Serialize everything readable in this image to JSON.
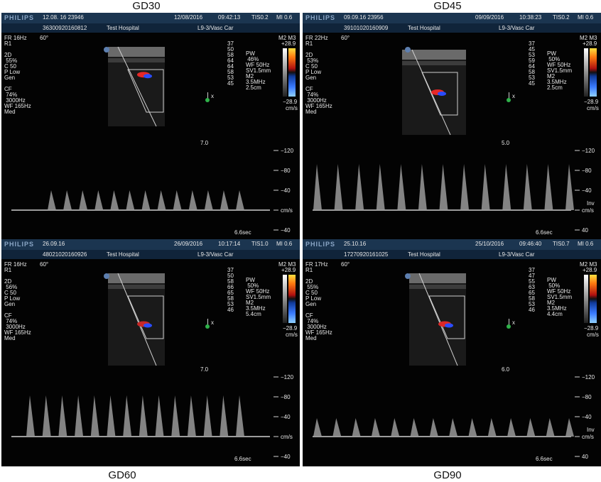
{
  "panels": [
    {
      "label": "GD30",
      "brand": "PHILIPS",
      "date_code": "12.08. 16 23946",
      "date": "12/08/2016",
      "time": "09:42:13",
      "tis": "TIS0.2",
      "mi": "MI 0.6",
      "id": "36300920160812",
      "hospital": "Test Hospital",
      "probe": "L9-3/Vasc Car",
      "fr": "FR 16Hz",
      "angle": "60°",
      "left_params": [
        "R1",
        "",
        "2D",
        " 55%",
        "C 50",
        "P Low",
        "Gen",
        "",
        "CF",
        " 74%",
        " 3000Hz",
        "WF 165Hz",
        "Med"
      ],
      "depth_nums": [
        "37",
        "50",
        "58",
        "64",
        "64",
        "58",
        "53",
        "45"
      ],
      "pw_params": [
        "PW",
        " 46%",
        "WF 50Hz",
        "SV1.5mm",
        "M2",
        "3.5MHz",
        "2.5cm"
      ],
      "scale_top": "+28.9",
      "scale_bottom": "−28.9",
      "scale_unit": "cm/s",
      "modes": "M2 M3",
      "depth": "7.0",
      "gate_x": "x",
      "doppler_ticks": [
        "−120",
        "−80",
        "−40",
        "cm/s",
        "−40"
      ],
      "inv": "",
      "sweep": "6.6sec"
    },
    {
      "label": "GD45",
      "brand": "PHILIPS",
      "date_code": "09.09.16 23956",
      "date": "09/09/2016",
      "time": "10:38:23",
      "tis": "TIS0.2",
      "mi": "MI 0.6",
      "id": "39101020160909",
      "hospital": "Test Hospital",
      "probe": "L9-3/Vasc Car",
      "fr": "FR 22Hz",
      "angle": "60°",
      "left_params": [
        "R1",
        "",
        "2D",
        " 53%",
        "C 50",
        "P Low",
        "Gen",
        "",
        "CF",
        " 74%",
        " 3000Hz",
        "WF 165Hz",
        "Med"
      ],
      "depth_nums": [
        "37",
        "45",
        "53",
        "59",
        "64",
        "58",
        "53",
        "45"
      ],
      "pw_params": [
        "PW",
        " 50%",
        "WF 50Hz",
        "SV1.5mm",
        "M2",
        "3.5MHz",
        "2.5cm"
      ],
      "scale_top": "+28.9",
      "scale_bottom": "−28.9",
      "scale_unit": "cm/s",
      "modes": "M2 M3",
      "depth": "5.0",
      "gate_x": "x",
      "doppler_ticks": [
        "−120",
        "−80",
        "−40",
        "cm/s",
        "40"
      ],
      "inv": "Inv",
      "sweep": "6.6sec"
    },
    {
      "label": "GD60",
      "brand": "PHILIPS",
      "date_code": "26.09.16",
      "date": "26/09/2016",
      "time": "10:17:14",
      "tis": "TIS1.0",
      "mi": "MI 0.6",
      "id": "48021020160926",
      "hospital": "Test Hospital",
      "probe": "L9-3/Vasc Car",
      "fr": "FR 16Hz",
      "angle": "60°",
      "left_params": [
        "R1",
        "",
        "2D",
        " 56%",
        "C 50",
        "P Low",
        "Gen",
        "",
        "CF",
        " 74%",
        " 3000Hz",
        "WF 165Hz",
        "Med"
      ],
      "depth_nums": [
        "37",
        "50",
        "58",
        "66",
        "65",
        "58",
        "53",
        "46"
      ],
      "pw_params": [
        "PW",
        " 50%",
        "WF 50Hz",
        "SV1.5mm",
        "M2",
        "3.5MHz",
        "5.4cm"
      ],
      "scale_top": "+28.9",
      "scale_bottom": "−28.9",
      "scale_unit": "cm/s",
      "modes": "M2 M3",
      "depth": "7.0",
      "gate_x": "x",
      "doppler_ticks": [
        "−120",
        "−80",
        "−40",
        "cm/s",
        "−40"
      ],
      "inv": "",
      "sweep": "6.6sec"
    },
    {
      "label": "GD90",
      "brand": "PHILIPS",
      "date_code": "25.10.16",
      "date": "25/10/2016",
      "time": "09:46:40",
      "tis": "TIS0.7",
      "mi": "MI 0.6",
      "id": "17270920161025",
      "hospital": "Test Hospital",
      "probe": "L9-3/Vasc Car",
      "fr": "FR 17Hz",
      "angle": "60°",
      "left_params": [
        "R1",
        "",
        "2D",
        " 55%",
        "C 50",
        "P Low",
        "Gen",
        "",
        "CF",
        " 74%",
        " 3000Hz",
        "WF 165Hz",
        "Med"
      ],
      "depth_nums": [
        "37",
        "47",
        "55",
        "63",
        "65",
        "58",
        "53",
        "46"
      ],
      "pw_params": [
        "PW",
        " 50%",
        "WF 50Hz",
        "SV1.5mm",
        "M2",
        "3.5MHz",
        "4.4cm"
      ],
      "scale_top": "+28.9",
      "scale_bottom": "−28.9",
      "scale_unit": "cm/s",
      "modes": "M2 M3",
      "depth": "6.0",
      "gate_x": "x",
      "doppler_ticks": [
        "−120",
        "−80",
        "−40",
        "cm/s",
        "40"
      ],
      "inv": "Inv",
      "sweep": "6.6sec"
    }
  ]
}
